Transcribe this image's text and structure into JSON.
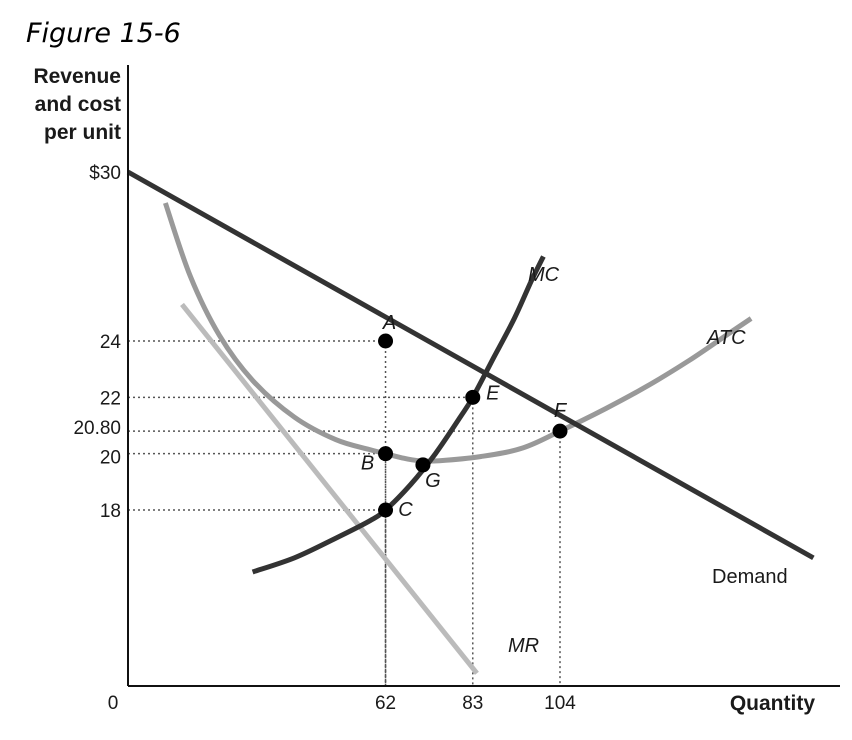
{
  "title": "Figure 15-6",
  "chart_data": {
    "type": "line",
    "ylabel_lines": [
      "Revenue",
      "and cost",
      "per unit"
    ],
    "xlabel": "Quantity",
    "origin_label": "0",
    "y_ticks": [
      {
        "value": 30,
        "label": "$30"
      },
      {
        "value": 24,
        "label": "24"
      },
      {
        "value": 22,
        "label": "22"
      },
      {
        "value": 20.8,
        "label": "20.80"
      },
      {
        "value": 20,
        "label": "20"
      },
      {
        "value": 18,
        "label": "18"
      }
    ],
    "x_ticks": [
      {
        "value": 62,
        "label": "62"
      },
      {
        "value": 83,
        "label": "83"
      },
      {
        "value": 104,
        "label": "104"
      }
    ],
    "series": [
      {
        "name": "Demand",
        "color": "#333333",
        "x": [
          0,
          165
        ],
        "y": [
          30,
          16.3
        ]
      },
      {
        "name": "MR",
        "color": "#bbbbbb",
        "x": [
          13,
          84
        ],
        "y": [
          25.3,
          12.2
        ]
      },
      {
        "name": "MC",
        "color": "#333333",
        "x": [
          30,
          40,
          50,
          58,
          62,
          68,
          74,
          80,
          83,
          88,
          93,
          97,
          100
        ],
        "y": [
          15.8,
          16.3,
          17.0,
          17.6,
          18.0,
          18.9,
          20.0,
          21.3,
          22.0,
          23.4,
          24.8,
          26.1,
          27.0
        ]
      },
      {
        "name": "ATC",
        "color": "#999999",
        "x": [
          9,
          15,
          22,
          30,
          40,
          50,
          58,
          62,
          66,
          70,
          75,
          85,
          95,
          104,
          115,
          125,
          135,
          145,
          150
        ],
        "y": [
          28.9,
          26.3,
          24.2,
          22.6,
          21.3,
          20.5,
          20.15,
          20.0,
          19.85,
          19.75,
          19.75,
          19.9,
          20.2,
          20.8,
          21.6,
          22.4,
          23.3,
          24.3,
          24.8
        ]
      }
    ],
    "points": [
      {
        "label": "A",
        "x": 62,
        "y": 24
      },
      {
        "label": "E",
        "x": 83,
        "y": 22
      },
      {
        "label": "F",
        "x": 104,
        "y": 20.8
      },
      {
        "label": "B",
        "x": 62,
        "y": 20
      },
      {
        "label": "G",
        "x": 71,
        "y": 19.6
      },
      {
        "label": "C",
        "x": 62,
        "y": 18
      }
    ],
    "reference_lines": [
      {
        "y": 24,
        "x": 62
      },
      {
        "y": 22,
        "x": 83
      },
      {
        "y": 20.8,
        "x": 104
      },
      {
        "y": 20,
        "x": 62
      },
      {
        "y": 18,
        "x": 62
      }
    ],
    "xlim": [
      0,
      165
    ],
    "ylim": [
      10,
      30
    ],
    "grid": false,
    "legend": "none"
  }
}
